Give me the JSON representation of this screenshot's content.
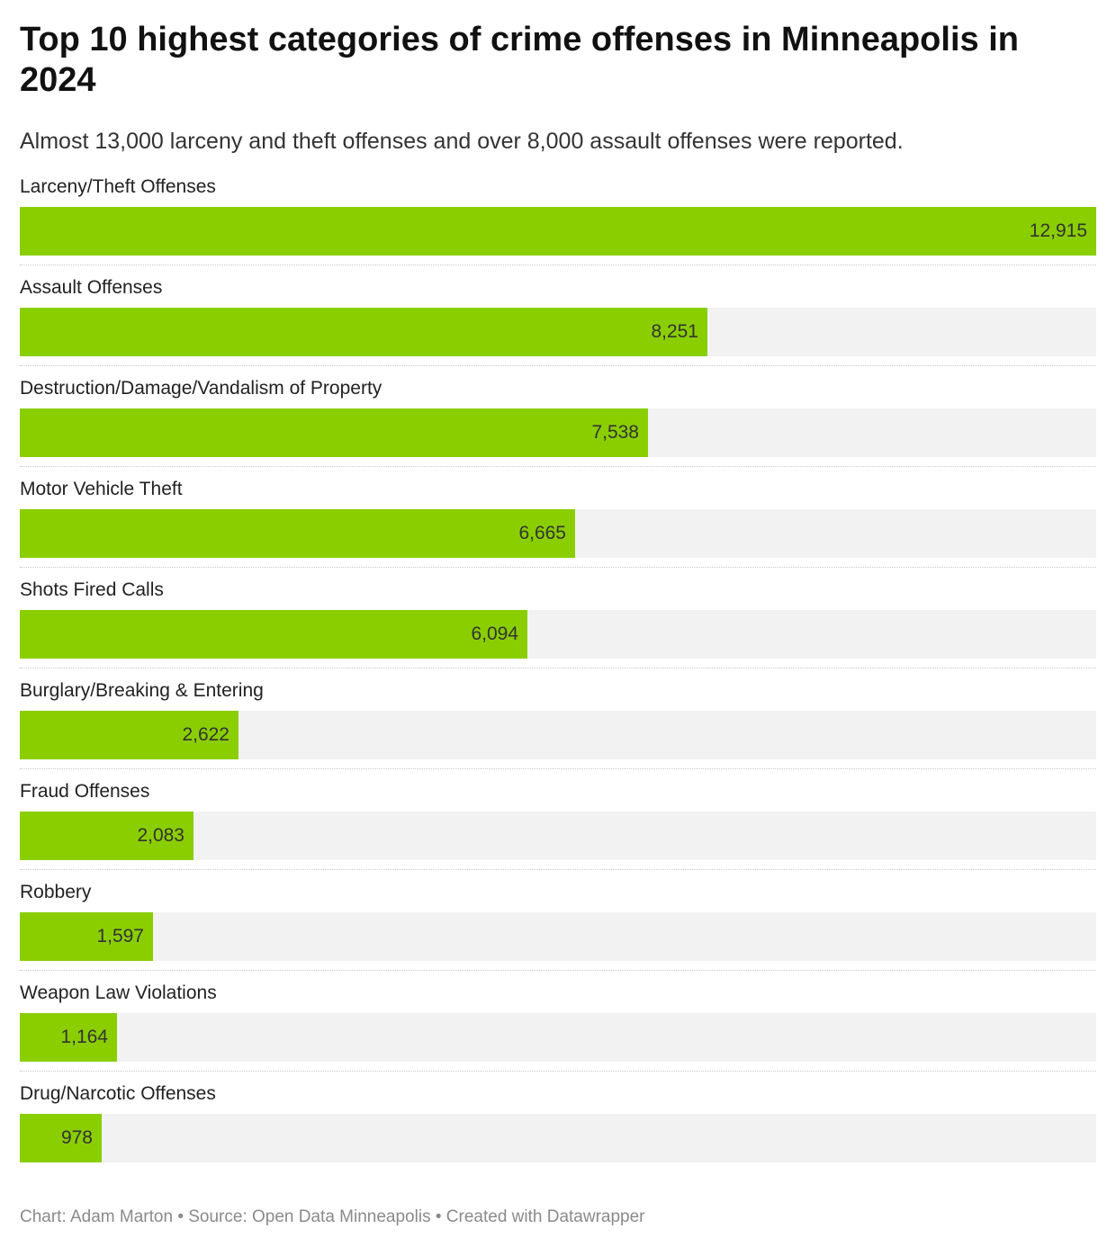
{
  "title": "Top 10 highest categories of crime offenses in Minneapolis in 2024",
  "subtitle": "Almost 13,000 larceny and theft offenses and over 8,000 assault offenses were reported.",
  "footer": {
    "chart_credit": "Chart: Adam Marton",
    "source": "Source: Open Data Minneapolis",
    "created_with": "Created with Datawrapper",
    "separator": "•"
  },
  "colors": {
    "bar": "#8ace00",
    "track": "#f2f2f2"
  },
  "chart_data": {
    "type": "bar",
    "orientation": "horizontal",
    "title": "Top 10 highest categories of crime offenses in Minneapolis in 2024",
    "subtitle": "Almost 13,000 larceny and theft offenses and over 8,000 assault offenses were reported.",
    "xlabel": "",
    "ylabel": "",
    "xlim": [
      0,
      12915
    ],
    "grid": false,
    "legend": "none",
    "categories": [
      "Larceny/Theft Offenses",
      "Assault Offenses",
      "Destruction/Damage/Vandalism of Property",
      "Motor Vehicle Theft",
      "Shots Fired Calls",
      "Burglary/Breaking & Entering",
      "Fraud Offenses",
      "Robbery",
      "Weapon Law Violations",
      "Drug/Narcotic Offenses"
    ],
    "values": [
      12915,
      8251,
      7538,
      6665,
      6094,
      2622,
      2083,
      1597,
      1164,
      978
    ],
    "value_labels": [
      "12,915",
      "8,251",
      "7,538",
      "6,665",
      "6,094",
      "2,622",
      "2,083",
      "1,597",
      "1,164",
      "978"
    ]
  }
}
